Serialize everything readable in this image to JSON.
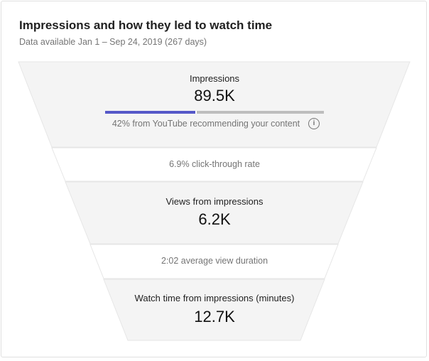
{
  "header": {
    "title": "Impressions and how they led to watch time",
    "subtitle": "Data available Jan 1 – Sep 24, 2019 (267 days)"
  },
  "funnel": {
    "impressions": {
      "label": "Impressions",
      "value": "89.5K",
      "recommended_text": "42% from YouTube recommending your content",
      "recommended_percent": 42,
      "info_icon": "info-icon"
    },
    "ctr": {
      "text": "6.9% click-through rate"
    },
    "views": {
      "label": "Views from impressions",
      "value": "6.2K"
    },
    "duration": {
      "text": "2:02 average view duration"
    },
    "watch_time": {
      "label": "Watch time from impressions (minutes)",
      "value": "12.7K"
    }
  },
  "colors": {
    "accent": "#5558c8",
    "band": "#f4f4f4",
    "track": "#bdbdbd"
  }
}
